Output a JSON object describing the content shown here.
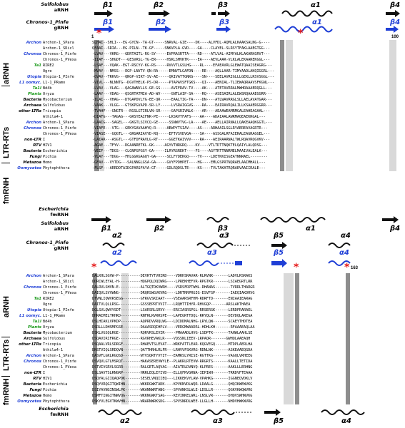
{
  "panel_top": {
    "top_reference": {
      "label_line1": "Sulfolobus",
      "label_line2": "aRNH",
      "ss": [
        "β1",
        "β2",
        "β3",
        "α1",
        "β4"
      ]
    },
    "mid_reference": {
      "label_line1": "Chronos-1_Pinfe",
      "label_line2": "gRNH",
      "ss": [
        "β1",
        "β2",
        "β3",
        "α1",
        "β4"
      ]
    },
    "start_number": "1",
    "end_number": "100",
    "rows": [
      {
        "group": "Archon",
        "group_color": "#1f3fd6",
        "species": "Archon-1_SPara",
        "seq": "SLHAI--SHLI---EG-GYCN--TA-GT-----SNRVAL-GIE----DK----ALVFDL-AQMLALKAAKSALNG-G----"
      },
      {
        "group": "",
        "group_color": "#1f3fd6",
        "species": "Archon-1_SDicl",
        "seq": "QFAAI--SRIA---EG-PILN--TK-GF-----SNKVPLA-GVD----GA----CLAYEL-SLRSYTFAKLAAEGTGG---"
      },
      {
        "group": "Chronos",
        "group_color": "#1f3fd6",
        "species": "Chronos-1_Pinfe",
        "seq": "-LVAV---VKRG---GDRTAITL-RG-SY-----EVPRASRTTA----RD----ATLVAL-AIMYALKLAKARKGRVT---"
      },
      {
        "group": "",
        "group_color": "#1f3fd6",
        "species": "Chronos-1_PVexa",
        "seq": "-IIAF---SHGDT---GESVRSL-TG-ER-----HSKLSMVKTK----EA----AEVLAAR-VLKLALEKAAREKGGL---"
      },
      {
        "group": "Ta1",
        "group_color": "#1a9a1a",
        "species": "RIRE2",
        "seq": "-LSAF---VQAK--EGT-RSCYV-KG-RS-----RVVVTLGSLHG----RL----EFAEAVRLGLEWATQAAISEAGRG---"
      },
      {
        "group": "",
        "group_color": "#1a9a1a",
        "species": "Ogre",
        "seq": "-MVAY---NMSS---EGP-LNVTV-QN-RA-----EMNVTLGAFDN----RE----AQLLAAR-TIMYAADLAKQIGGRL---"
      },
      {
        "group": "Utopia",
        "group_color": "#1f3fd6",
        "species": "Utopia-1_PInfe",
        "seq": "-GVAV--TRKVG---QNGP-VIKT-SV-AE-----QKIVATTGNKG----SN----SEELAVRIGLLLGEKLLRSVSGGL---"
      },
      {
        "group": "L1 oomyc.",
        "group_color": "#1f3fd6",
        "species": "L1-1_PRamo",
        "seq": "-VIVL---NLNNTG--DGVTHELK-PS-DR-----PTAPAVSFTGKS---QI----AENIAL-TLIEWAQRAAVSFKGNL---"
      },
      {
        "group": "Ta1I",
        "group_color": "#1a9a1a",
        "species": "Bd4b",
        "seq": "-LVAV---VLAG---QAGAWNVLLS-GE-GS-----AVIFRAV-TV----AK----ATETAVRRALMWHRAAAERQGLL---"
      },
      {
        "group": "Plants",
        "group_color": "#1a9a1a",
        "species": "Oryza",
        "seq": "-LAAY---VDAG---QSGRTATMIA-AD-WV-----GNTLAIP-SA----RQ----ASESAIRLALEWSRQAAAEGGRR---"
      },
      {
        "group": "Bacteria",
        "group_color": "#000000",
        "species": "Mycobacterium",
        "seq": "-ILAI---VHAG---DTGAPDVLYG-EE-QR-----EAALTIG-TA----DN----ATLWAVRRGLSLLAELAVATGAR---"
      },
      {
        "group": "Archaea",
        "group_color": "#000000",
        "species": "Sulfolobus",
        "seq": "-VAAK---VLGG---GTSKPGVAPD-SR-LY-----LVSRAIGGVG----RA----EAIRAVRQALILLKSAAERGGRR---"
      },
      {
        "group": "other LTRs",
        "group_color": "#000000",
        "species": "Tricopia",
        "seq": "-TVAHF---GNGTR---RGSLGTIRLVN-SR-----GAPGRIVNLK----AR----AEAAWEAMRMGALEAHEAGAAL---"
      },
      {
        "group": "",
        "group_color": "#000000",
        "species": "Athila4-1",
        "seq": "-DIAFG---TAGAG---GRSYEAIFNR-PE-----LKSRVTFAFS----AA----ADAIAALAWRMAQEAEKRGAL---"
      },
      {
        "group": "Archon",
        "group_color": "#1f3fd6",
        "species": "Archon-1_SPara",
        "seq": "-LAAIG---SAGEL---GKGTLSIVCQ-GE-----SSNWVTVG-LA----AE----AELLAIRNALLQAKEAAQKGGTL---"
      },
      {
        "group": "Chronos",
        "group_color": "#1f3fd6",
        "species": "Chronos-1_Pinfe",
        "seq": "-VIAFE---VTG---GEKYGAVAAHYQ-R-----AEWPYTSIAV----AS----ARHAAILSGLRYAEREAVAGRTR---"
      },
      {
        "group": "",
        "group_color": "#1f3fd6",
        "species": "Chronos-1_PVexa",
        "seq": "-VIASE---GQGTL---GRGARIAVYD-RQ-----EFTVSVDVGA----SA----ASSGALRFAIERALEAGRAGGEL---"
      },
      {
        "group": "non-LTR",
        "group_color": "#000000",
        "species": "I",
        "seq": "-LAIAR---ASGTL---GTFDFRAVLG-RT-----GGETKAIVVV----RA----AEIRAARNALTWLRQAVRQGVKV---"
      },
      {
        "group": "RTV",
        "group_color": "#000000",
        "species": "HIV1",
        "seq": "-AGAE---TFYV---DGAANRETKL-GK-----AGYVTNRGRQ----KV----VTLTDTTNQKTELQAIYLALQDSG---"
      },
      {
        "group": "Bacteria",
        "group_color": "#000000",
        "species": "Escherichia",
        "seq": "-VEIF---TDGS---CLGNPGPGGY-GA-----ILRYRGREKT----FS----AGYTRTTNNRMELMAAIVALEALK---"
      },
      {
        "group": "Fungi",
        "group_color": "#000000",
        "species": "Pichia",
        "seq": "-YLAY---TDGG---FHLGGKGAGQY-GA-----SCLFYDEKGQ----TV----LDETKKISGEATNNRAEL--------"
      },
      {
        "group": "Metazoa",
        "group_color": "#000000",
        "species": "Homo",
        "seq": "-GFAV---VYTDG---SALNNGLGSA-GA-----GVYFPDHPET----HG----EMLGSPRTNQRAELAAIMHALL---"
      },
      {
        "group": "Oomycetes",
        "group_color": "#1f3fd6",
        "species": "Phytophthora",
        "seq": "-FLSF---ARRDDTAIDGPARSFAYA-GT-----GDLRQDSLTE----KS----TVLTAKATRQRAEVAAIIRALE---"
      }
    ],
    "bottom_reference": {
      "label_line1": "Escherichia",
      "label_line2": "fmRNH",
      "ss": [
        "β1",
        "β2",
        "β3",
        "α1",
        "β4"
      ]
    },
    "categories": [
      "aRNH",
      "LTR-RTs",
      "fmRNH"
    ]
  },
  "panel_bottom": {
    "top_reference": {
      "label_line1": "Sulfolobus",
      "label_line2": "aRNH",
      "ss": [
        "α2",
        "α3",
        "β5",
        "α4"
      ]
    },
    "mid_reference": {
      "label_line1": "Chronos-1_Pinfe",
      "label_line2": "gRNH",
      "ss": [
        "α2",
        "α3",
        "β5",
        "α4"
      ]
    },
    "end_number": "163",
    "rows": [
      {
        "group": "Archon",
        "group_color": "#1f3fd6",
        "species": "Archon-1_SPara",
        "seq": "DALKHLSGVW-P----------DEVRTYTVHIRD----VDRHSRAVAR-RLRVNK-------LADVLRSRAKS"
      },
      {
        "group": "",
        "group_color": "#1f3fd6",
        "species": "Archon-1_SDicl",
        "seq": "DDRCWLEYAL-H----------HQGPQLDQIWRG----LPREKHEFVR-RPGTKR-------LSIAEGRTLRR"
      },
      {
        "group": "Chronos",
        "group_color": "#1f3fd6",
        "species": "Chronos-1_Pinfe",
        "seq": "DALRVLSHVN-E----------ALTGQTDKVWRH----VSRSFRPTWHL-RHANAS-------TVRRLTHARGR"
      },
      {
        "group": "",
        "group_color": "#1f3fd6",
        "species": "Chronos-1_PVexa",
        "seq": "DAIQVLSVVWNG----------DRQRSWGVKVRG----LDRTRRPRGIG-ESVFSP-------IAEQIAKDRVG"
      },
      {
        "group": "Ta1",
        "group_color": "#1a9a1a",
        "species": "RIRE2",
        "seq": "DTVNLIQWVRSEGG--------GFRGVSKIAAT----VSEAARSRFHM-RDRFTD-------ENIAAIEARAG"
      },
      {
        "group": "",
        "group_color": "#1a9a1a",
        "species": "Ogre",
        "seq": "DAITVLQLLRSG----------GSSSEPRTVVIT---LRQHTTIHYR-RHVGQP-------ARSLAKTHAEA"
      },
      {
        "group": "Utopia",
        "group_color": "#1f3fd6",
        "species": "Utopia-1_PInfe",
        "seq": "DGLSVLQWVYSDT---------LSARSRLGRVV----ERCIASRSPGL-RRSERSK------LERDFRARAEL"
      },
      {
        "group": "L1 oomyc.",
        "group_color": "#1f3fd6",
        "species": "L1-1_PRamo",
        "seq": "DHRAIMELTRHKD---------RNFRLRVRRSPE---LAPEGRTTDQL-RRYQLN-------DEVDQLAREGA"
      },
      {
        "group": "Ta1I",
        "group_color": "#1a9a1a",
        "species": "Bd4b",
        "seq": "DSLHIAKLVPKDP---------AQPRDVVRQLWG---LDIDDMALNHG-LRYLQW-------SCAEYTHDTEA"
      },
      {
        "group": "Plants",
        "group_color": "#1a9a1a",
        "species": "Oryza",
        "seq": "DSRLLLDHSMPGSE--------DAAASRQIHPLV----VERGMWAADRL-HDHLKH-------RFAAAEAQLAA"
      },
      {
        "group": "Bacteria",
        "group_color": "#000000",
        "species": "Mycobacterium",
        "seq": "DSKLVGSQLRGE----------RQRVRSLEVIR-----PMAAADLHVG-LSDPTK-------TAHWLAAHLSE"
      },
      {
        "group": "Archaea",
        "group_color": "#000000",
        "species": "Sulfolobus",
        "seq": "DSQAVIRIFRGE----------RGVRHEVAKLR----VQSSNLIEEV-LRPAQR-------GWHQLAAEAQH"
      },
      {
        "group": "other LTRs",
        "group_color": "#000000",
        "species": "Tricopia",
        "seq": "DSQAALVRLSDRGF--------RHAEVTSLEVAT---WRKFATTLEAR-KQGVEGQ------MTDPLAERLHA"
      },
      {
        "group": "",
        "group_color": "#000000",
        "species": "Athila4-1",
        "seq": "DNSTVIQLSRDQVN--------QATTHRHLRLFR---LRHVVFSKVRG-RDNLNK-------ASKEAAEQGDA"
      },
      {
        "group": "Archon",
        "group_color": "#1f3fd6",
        "species": "Archon-1_SPara",
        "seq": "DASVFLGKLRGQSD--------WTVSQRTYVYIT---EAMRSLYRISE-RGTTKG-------VAGQLVRHEEG"
      },
      {
        "group": "Chronos",
        "group_color": "#1f3fd6",
        "species": "Chronos-1_Pinfe",
        "seq": "DSVQVLGTLMSRQT--------HAKASEREVWYLE--PLAKRLRTEVW-RRGRTS-------KAALLTETIDA"
      },
      {
        "group": "",
        "group_color": "#1f3fd6",
        "species": "Chronos-1_PVexa",
        "seq": "DSTVIVGRVLSGRR--------RALGETLAQVAG---AIATRLDVNVQ-KLPRES-------AAKLLLERHNG"
      },
      {
        "group": "non-LTR",
        "group_color": "#000000",
        "species": "I",
        "seq": "DSLSAVTSLRNGRP--------HRRLEQLEYIVD---ELLQFRVGRNA-IEPIWH-------TRRDVFTEAAA"
      },
      {
        "group": "RTV",
        "group_color": "#000000",
        "species": "HIV1",
        "seq": "DSQYALGIIQAQPDK-------SESELVNQIIEQ---LIKKEKVYLAW-VPAHKG-------IGGNEQVDKLV"
      },
      {
        "group": "Bacteria",
        "group_color": "#000000",
        "species": "Escherichia",
        "seq": "DSQYVRQGITQWIHN-------WKKRGWKTADK----KPVKNVDLWQR-LDAALG-------QHQIKWEWVKG"
      },
      {
        "group": "Fungi",
        "group_color": "#000000",
        "species": "Pichia",
        "seq": "DSIYAVNGINSWLPK-------WKANNWRTANG----SPVANKSLWLE-LDSLLR-------QGKVKWQWVRG"
      },
      {
        "group": "Metazoa",
        "group_color": "#000000",
        "species": "Homo",
        "seq": "DSMFTINGITNWVQG-------WKKNGWKTSAG----KEVINKELWRL-LNSLVR-------DHQVSWHWVKG"
      },
      {
        "group": "Oomycetes",
        "group_color": "#1f3fd6",
        "species": "Phytophthora",
        "seq": "DSKYVLEGVTKWVHN-------WRARNWRKSDG----SPVSNRDLWEE-LLGLLH-------NHDVHWKWVRG"
      }
    ],
    "bottom_reference": {
      "label_line1": "Escherichia",
      "label_line2": "fmRNH",
      "ss": [
        "α2",
        "α3",
        "β5",
        "α4"
      ]
    },
    "categories": [
      "aRNH",
      "LTR-RTs",
      "fmRNH"
    ]
  },
  "colors": {
    "arrow_black": "#111111",
    "arrow_blue": "#1f3fd6",
    "star_red": "#e51d1d",
    "conserved_dark": "#8d8d8d",
    "conserved_light": "#d9d9d9"
  }
}
